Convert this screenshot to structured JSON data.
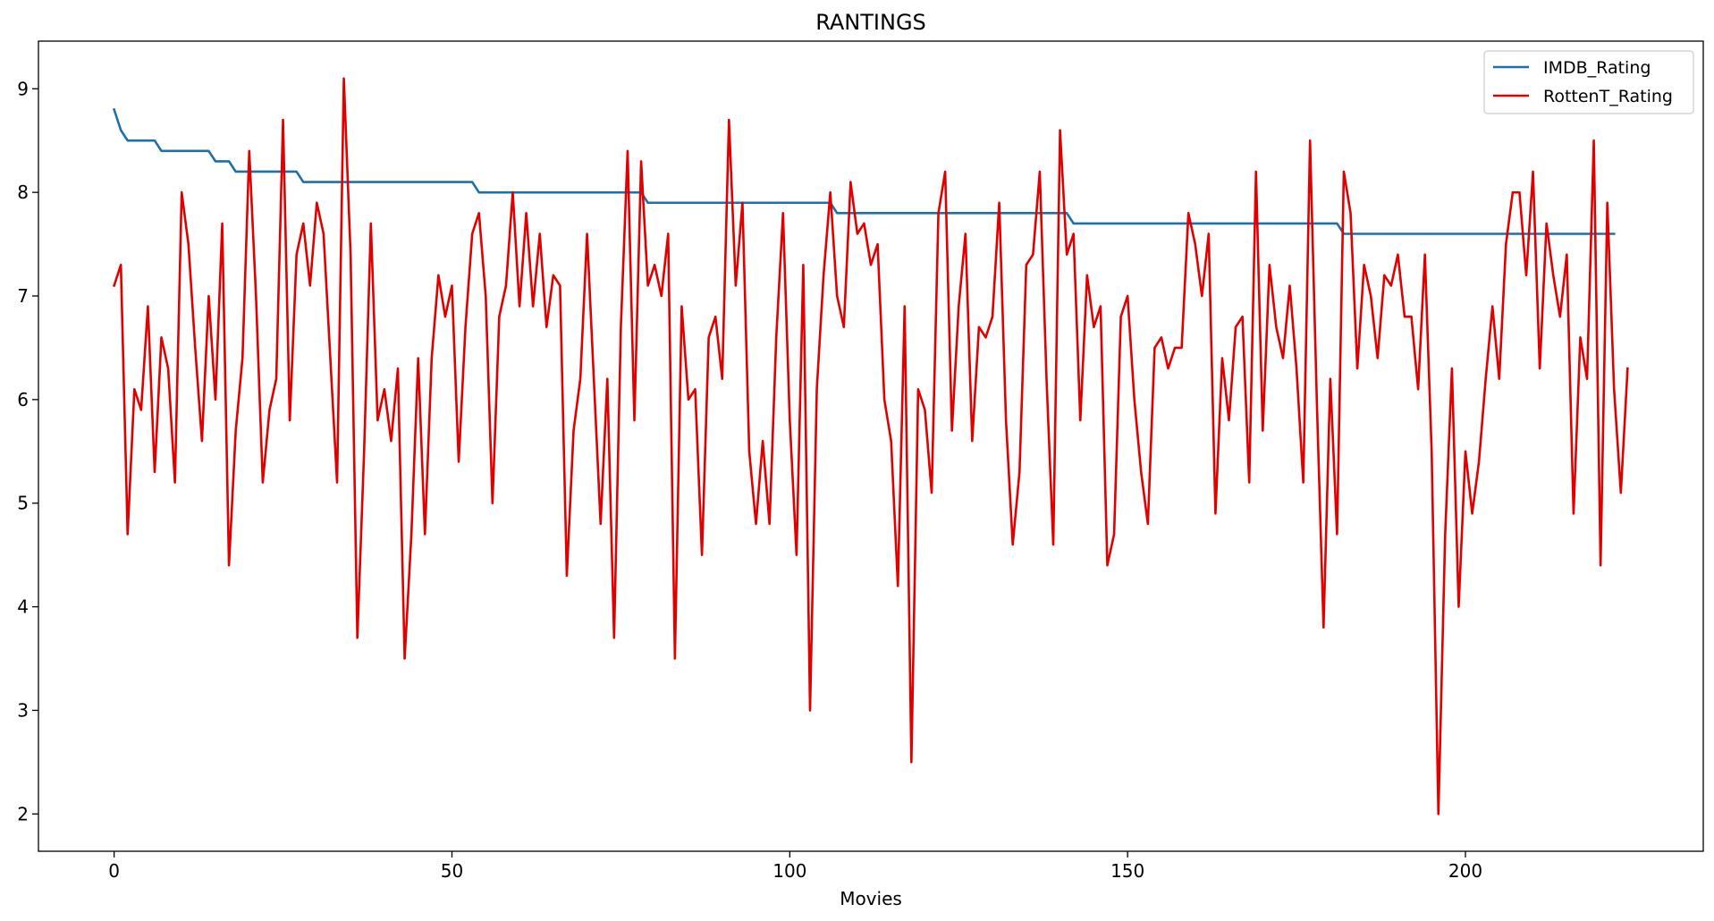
{
  "chart_data": {
    "type": "line",
    "title": "RANTINGS",
    "xlabel": "Movies",
    "ylabel": "",
    "xlim": [
      -11.2,
      235.2
    ],
    "ylim": [
      1.64,
      9.46
    ],
    "xticks": [
      0,
      50,
      100,
      150,
      200
    ],
    "yticks": [
      2,
      3,
      4,
      5,
      6,
      7,
      8,
      9
    ],
    "grid": false,
    "legend": "top-right",
    "colors": {
      "IMDB_Rating": "#1f6fa8",
      "RottenT_Rating": "#e00000"
    },
    "series": [
      {
        "name": "IMDB_Rating",
        "values": [
          8.8,
          8.6,
          8.5,
          8.5,
          8.5,
          8.5,
          8.5,
          8.4,
          8.4,
          8.4,
          8.4,
          8.4,
          8.4,
          8.4,
          8.4,
          8.3,
          8.3,
          8.3,
          8.2,
          8.2,
          8.2,
          8.2,
          8.2,
          8.2,
          8.2,
          8.2,
          8.2,
          8.2,
          8.1,
          8.1,
          8.1,
          8.1,
          8.1,
          8.1,
          8.1,
          8.1,
          8.1,
          8.1,
          8.1,
          8.1,
          8.1,
          8.1,
          8.1,
          8.1,
          8.1,
          8.1,
          8.1,
          8.1,
          8.1,
          8.1,
          8.1,
          8.1,
          8.1,
          8.1,
          8.0,
          8.0,
          8.0,
          8.0,
          8.0,
          8.0,
          8.0,
          8.0,
          8.0,
          8.0,
          8.0,
          8.0,
          8.0,
          8.0,
          8.0,
          8.0,
          8.0,
          8.0,
          8.0,
          8.0,
          8.0,
          8.0,
          8.0,
          8.0,
          8.0,
          7.9,
          7.9,
          7.9,
          7.9,
          7.9,
          7.9,
          7.9,
          7.9,
          7.9,
          7.9,
          7.9,
          7.9,
          7.9,
          7.9,
          7.9,
          7.9,
          7.9,
          7.9,
          7.9,
          7.9,
          7.9,
          7.9,
          7.9,
          7.9,
          7.9,
          7.9,
          7.9,
          7.9,
          7.8,
          7.8,
          7.8,
          7.8,
          7.8,
          7.8,
          7.8,
          7.8,
          7.8,
          7.8,
          7.8,
          7.8,
          7.8,
          7.8,
          7.8,
          7.8,
          7.8,
          7.8,
          7.8,
          7.8,
          7.8,
          7.8,
          7.8,
          7.8,
          7.8,
          7.8,
          7.8,
          7.8,
          7.8,
          7.8,
          7.8,
          7.8,
          7.8,
          7.8,
          7.8,
          7.7,
          7.7,
          7.7,
          7.7,
          7.7,
          7.7,
          7.7,
          7.7,
          7.7,
          7.7,
          7.7,
          7.7,
          7.7,
          7.7,
          7.7,
          7.7,
          7.7,
          7.7,
          7.7,
          7.7,
          7.7,
          7.7,
          7.7,
          7.7,
          7.7,
          7.7,
          7.7,
          7.7,
          7.7,
          7.7,
          7.7,
          7.7,
          7.7,
          7.7,
          7.7,
          7.7,
          7.7,
          7.7,
          7.7,
          7.7,
          7.6,
          7.6,
          7.6,
          7.6,
          7.6,
          7.6,
          7.6,
          7.6,
          7.6,
          7.6,
          7.6,
          7.6,
          7.6,
          7.6,
          7.6,
          7.6,
          7.6,
          7.6,
          7.6,
          7.6,
          7.6,
          7.6,
          7.6,
          7.6,
          7.6,
          7.6,
          7.6,
          7.6,
          7.6,
          7.6,
          7.6,
          7.6,
          7.6,
          7.6,
          7.6,
          7.6,
          7.6,
          7.6,
          7.6,
          7.6,
          7.6
        ]
      },
      {
        "name": "RottenT_Rating",
        "values": [
          7.1,
          7.3,
          4.7,
          6.1,
          5.9,
          6.9,
          5.3,
          6.6,
          6.3,
          5.2,
          8.0,
          7.5,
          6.5,
          5.6,
          7.0,
          6.0,
          7.7,
          4.4,
          5.7,
          6.4,
          8.4,
          7.0,
          5.2,
          5.9,
          6.2,
          8.7,
          5.8,
          7.4,
          7.7,
          7.1,
          7.9,
          7.6,
          6.4,
          5.2,
          9.1,
          7.4,
          3.7,
          5.5,
          7.7,
          5.8,
          6.1,
          5.6,
          6.3,
          3.5,
          4.7,
          6.4,
          4.7,
          6.4,
          7.2,
          6.8,
          7.1,
          5.4,
          6.7,
          7.6,
          7.8,
          7.0,
          5.0,
          6.8,
          7.1,
          8.0,
          6.9,
          7.8,
          6.9,
          7.6,
          6.7,
          7.2,
          7.1,
          4.3,
          5.7,
          6.2,
          7.6,
          6.2,
          4.8,
          6.2,
          3.7,
          6.7,
          8.4,
          5.8,
          8.3,
          7.1,
          7.3,
          7.0,
          7.6,
          3.5,
          6.9,
          6.0,
          6.1,
          4.5,
          6.6,
          6.8,
          6.2,
          8.7,
          7.1,
          7.9,
          5.5,
          4.8,
          5.6,
          4.8,
          6.6,
          7.8,
          5.8,
          4.5,
          7.3,
          3.0,
          6.1,
          7.2,
          8.0,
          7.0,
          6.7,
          8.1,
          7.6,
          7.7,
          7.3,
          7.5,
          6.0,
          5.6,
          4.2,
          6.9,
          2.5,
          6.1,
          5.9,
          5.1,
          7.8,
          8.2,
          5.7,
          6.9,
          7.6,
          5.6,
          6.7,
          6.6,
          6.8,
          7.9,
          5.8,
          4.6,
          5.3,
          7.3,
          7.4,
          8.2,
          6.2,
          4.6,
          8.6,
          7.4,
          7.6,
          5.8,
          7.2,
          6.7,
          6.9,
          4.4,
          4.7,
          6.8,
          7.0,
          6.0,
          5.3,
          4.8,
          6.5,
          6.6,
          6.3,
          6.5,
          6.5,
          7.8,
          7.5,
          7.0,
          7.6,
          4.9,
          6.4,
          5.8,
          6.7,
          6.8,
          5.2,
          8.2,
          5.7,
          7.3,
          6.7,
          6.4,
          7.1,
          6.3,
          5.2,
          8.5,
          6.0,
          3.8,
          6.2,
          4.7,
          8.2,
          7.8,
          6.3,
          7.3,
          7.0,
          6.4,
          7.2,
          7.1,
          7.4,
          6.8,
          6.8,
          6.1,
          7.4,
          5.5,
          2.0,
          4.7,
          6.3,
          4.0,
          5.5,
          4.9,
          5.4,
          6.2,
          6.9,
          6.2,
          7.5,
          8.0,
          8.0,
          7.2,
          8.2,
          6.3,
          7.7,
          7.2,
          6.8,
          7.4,
          4.9,
          6.6,
          6.2,
          8.5,
          4.4,
          7.9,
          6.1,
          5.1,
          6.3
        ]
      }
    ]
  }
}
